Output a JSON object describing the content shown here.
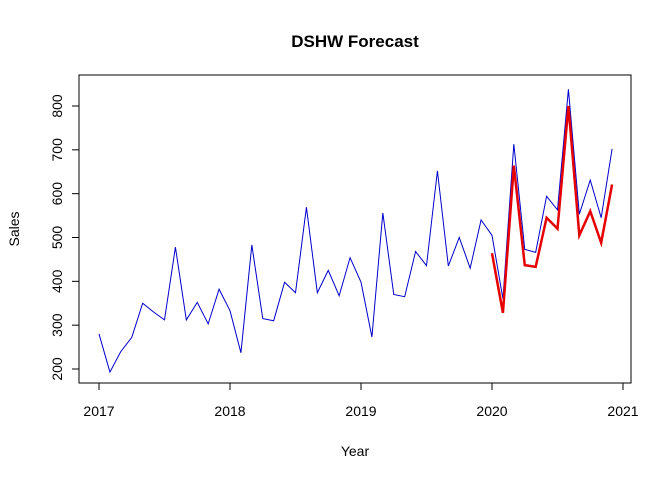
{
  "chart_data": {
    "type": "line",
    "title": "DSHW Forecast",
    "xlabel": "Year",
    "ylabel": "Sales",
    "xlim": [
      2017,
      2021
    ],
    "ylim": [
      200,
      800
    ],
    "x_ticks": [
      "2017",
      "2018",
      "2019",
      "2020",
      "2021"
    ],
    "y_ticks": [
      "200",
      "300",
      "400",
      "500",
      "600",
      "700",
      "800"
    ],
    "grid": false,
    "legend": "none",
    "series": [
      {
        "color": "#0000cc",
        "start": 2017.0,
        "step": 0.0833333,
        "values": [
          280,
          193,
          240,
          272,
          350,
          330,
          312,
          478,
          312,
          352,
          303,
          382,
          333,
          237,
          483,
          315,
          310,
          398,
          374,
          569,
          374,
          425,
          367,
          454,
          398,
          273,
          556,
          370,
          365,
          468,
          436,
          652,
          435,
          500,
          430,
          540,
          505,
          360,
          713,
          473,
          466,
          594,
          563,
          838,
          553,
          631,
          545,
          702
        ]
      },
      {
        "color": "#e60000",
        "start": 2020.0,
        "step": 0.0833333,
        "values": [
          464,
          328,
          664,
          437,
          433,
          545,
          520,
          800,
          505,
          560,
          488,
          621
        ]
      }
    ]
  }
}
